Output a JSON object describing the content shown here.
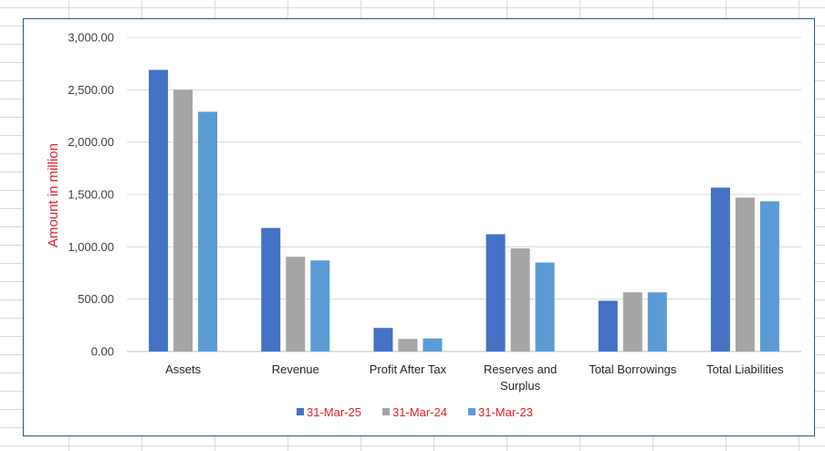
{
  "chart_data": {
    "type": "bar",
    "title": "",
    "xlabel": "",
    "ylabel": "Amount in million",
    "ylim": [
      0,
      3000
    ],
    "yticks": [
      "0.00",
      "500.00",
      "1,000.00",
      "1,500.00",
      "2,000.00",
      "2,500.00",
      "3,000.00"
    ],
    "categories": [
      "Assets",
      "Revenue",
      "Profit After Tax",
      "Reserves and Surplus",
      "Total Borrowings",
      "Total Liabilities"
    ],
    "series": [
      {
        "name": "31-Mar-25",
        "color": "#4472c4",
        "values": [
          2690,
          1180,
          225,
          1120,
          485,
          1565
        ]
      },
      {
        "name": "31-Mar-24",
        "color": "#a5a5a5",
        "values": [
          2500,
          905,
          120,
          985,
          565,
          1470
        ]
      },
      {
        "name": "31-Mar-23",
        "color": "#5b9bd5",
        "values": [
          2290,
          870,
          125,
          850,
          565,
          1435
        ]
      }
    ],
    "grid": true,
    "legend_position": "bottom"
  }
}
